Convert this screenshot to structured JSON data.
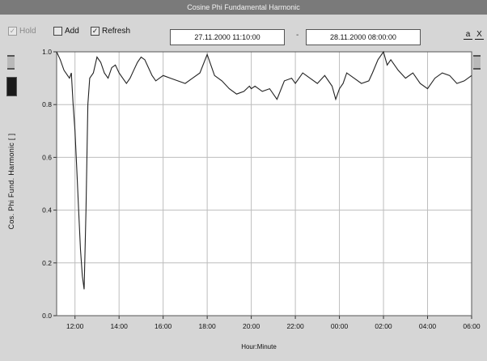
{
  "window": {
    "title": "Cosine Phi Fundamental Harmonic"
  },
  "toolbar": {
    "hold_label": "Hold",
    "hold_checked": true,
    "add_label": "Add",
    "add_checked": false,
    "refresh_label": "Refresh",
    "refresh_checked": true,
    "date_from": "27.11.2000   11:10:00",
    "date_to": "28.11.2000   08:00:00",
    "separator": "-",
    "btn_a": "a",
    "btn_x": "X"
  },
  "colors": {
    "title_bar": "#7a7a7a",
    "plot_bg": "#ffffff",
    "grid": "#bdbdbd",
    "line": "#222222",
    "window_bg": "#d6d6d6"
  },
  "chart_data": {
    "type": "line",
    "ylabel": "Cos. Phi Fund. Harmonic [ ]",
    "xlabel": "Hour:Minute",
    "ylim": [
      0.0,
      1.0
    ],
    "yticks": [
      0.0,
      0.2,
      0.4,
      0.6,
      0.8,
      1.0
    ],
    "ytick_labels": [
      "0.0",
      "0.2",
      "0.4",
      "0.6",
      "0.8",
      "1.0"
    ],
    "xlim": [
      "11:10",
      "06:00"
    ],
    "xticks": [
      "12:00",
      "14:00",
      "16:00",
      "18:00",
      "20:00",
      "22:00",
      "00:00",
      "02:00",
      "04:00",
      "06:00"
    ],
    "grid": true,
    "series": [
      {
        "x": [
          "11:10",
          "11:20",
          "11:30",
          "11:40",
          "11:45",
          "11:50",
          "11:55",
          "12:00",
          "12:05",
          "12:10",
          "12:15",
          "12:20",
          "12:25",
          "12:30",
          "12:35",
          "12:40",
          "12:50",
          "13:00",
          "13:10",
          "13:20",
          "13:30",
          "13:40",
          "13:50",
          "14:00",
          "14:10",
          "14:20",
          "14:30",
          "14:40",
          "14:50",
          "15:00",
          "15:10",
          "15:20",
          "15:30",
          "15:40",
          "15:50",
          "16:00",
          "16:20",
          "16:40",
          "17:00",
          "17:20",
          "17:40",
          "18:00",
          "18:20",
          "18:40",
          "19:00",
          "19:20",
          "19:40",
          "19:55",
          "20:00",
          "20:10",
          "20:30",
          "20:50",
          "21:10",
          "21:30",
          "21:50",
          "22:00",
          "22:20",
          "22:40",
          "23:00",
          "23:20",
          "23:40",
          "23:50",
          "00:00",
          "00:10",
          "00:20",
          "00:40",
          "01:00",
          "01:20",
          "01:30",
          "01:45",
          "02:00",
          "02:10",
          "02:20",
          "02:40",
          "03:00",
          "03:20",
          "03:40",
          "04:00",
          "04:20",
          "04:40",
          "05:00",
          "05:20",
          "05:40",
          "06:00"
        ],
        "values": [
          1.0,
          0.97,
          0.93,
          0.91,
          0.9,
          0.92,
          0.8,
          0.7,
          0.55,
          0.4,
          0.25,
          0.15,
          0.1,
          0.4,
          0.8,
          0.9,
          0.92,
          0.98,
          0.96,
          0.92,
          0.9,
          0.94,
          0.95,
          0.92,
          0.9,
          0.88,
          0.9,
          0.93,
          0.96,
          0.98,
          0.97,
          0.94,
          0.91,
          0.89,
          0.9,
          0.91,
          0.9,
          0.89,
          0.88,
          0.9,
          0.92,
          0.99,
          0.91,
          0.89,
          0.86,
          0.84,
          0.85,
          0.87,
          0.86,
          0.87,
          0.85,
          0.86,
          0.82,
          0.89,
          0.9,
          0.88,
          0.92,
          0.9,
          0.88,
          0.91,
          0.87,
          0.82,
          0.86,
          0.88,
          0.92,
          0.9,
          0.88,
          0.89,
          0.92,
          0.97,
          1.0,
          0.95,
          0.97,
          0.93,
          0.9,
          0.92,
          0.88,
          0.86,
          0.9,
          0.92,
          0.91,
          0.88,
          0.89,
          0.91
        ]
      }
    ]
  }
}
